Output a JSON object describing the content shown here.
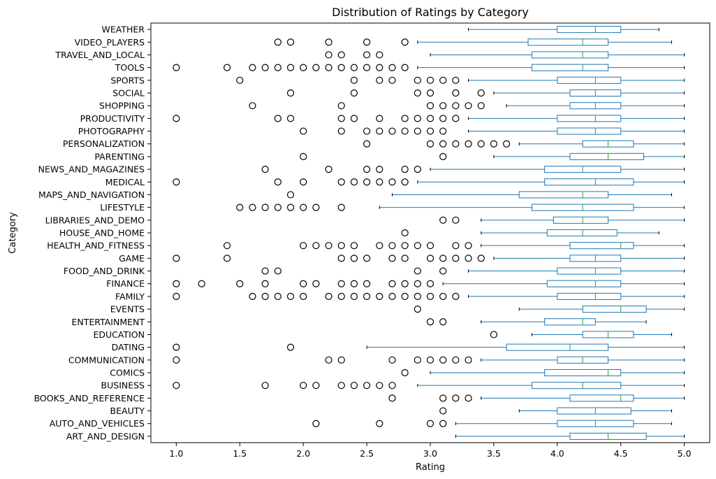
{
  "chart_data": {
    "type": "boxplot",
    "title": "Distribution of Ratings by Category",
    "xlabel": "Rating",
    "ylabel": "Category",
    "xlim": [
      0.8,
      5.2
    ],
    "xticks": [
      "1.0",
      "1.5",
      "2.0",
      "2.5",
      "3.0",
      "3.5",
      "4.0",
      "4.5",
      "5.0"
    ],
    "grid": false,
    "colors": {
      "box": "#1f77b4",
      "median": "#2ca02c",
      "outlier": "#000000"
    },
    "categories": [
      {
        "name": "ART_AND_DESIGN",
        "whislo": 3.2,
        "q1": 4.1,
        "median": 4.4,
        "q3": 4.7,
        "whishi": 5.0,
        "fliers": []
      },
      {
        "name": "AUTO_AND_VEHICLES",
        "whislo": 3.2,
        "q1": 4.0,
        "median": 4.3,
        "q3": 4.6,
        "whishi": 4.9,
        "fliers": [
          2.1,
          2.6,
          3.0,
          3.1
        ]
      },
      {
        "name": "BEAUTY",
        "whislo": 3.7,
        "q1": 4.0,
        "median": 4.3,
        "q3": 4.58,
        "whishi": 4.9,
        "fliers": [
          3.1
        ]
      },
      {
        "name": "BOOKS_AND_REFERENCE",
        "whislo": 3.4,
        "q1": 4.1,
        "median": 4.5,
        "q3": 4.6,
        "whishi": 5.0,
        "fliers": [
          2.7,
          3.1,
          3.2,
          3.3
        ]
      },
      {
        "name": "BUSINESS",
        "whislo": 2.9,
        "q1": 3.8,
        "median": 4.2,
        "q3": 4.5,
        "whishi": 5.0,
        "fliers": [
          1.0,
          1.7,
          2.0,
          2.1,
          2.3,
          2.4,
          2.5,
          2.6,
          2.7
        ]
      },
      {
        "name": "COMICS",
        "whislo": 3.0,
        "q1": 3.9,
        "median": 4.4,
        "q3": 4.5,
        "whishi": 5.0,
        "fliers": [
          2.8
        ]
      },
      {
        "name": "COMMUNICATION",
        "whislo": 3.4,
        "q1": 4.0,
        "median": 4.2,
        "q3": 4.4,
        "whishi": 5.0,
        "fliers": [
          1.0,
          2.2,
          2.3,
          2.7,
          2.9,
          3.0,
          3.1,
          3.2,
          3.3
        ]
      },
      {
        "name": "DATING",
        "whislo": 2.5,
        "q1": 3.6,
        "median": 4.1,
        "q3": 4.4,
        "whishi": 5.0,
        "fliers": [
          1.0,
          1.9
        ]
      },
      {
        "name": "EDUCATION",
        "whislo": 3.8,
        "q1": 4.2,
        "median": 4.4,
        "q3": 4.6,
        "whishi": 4.9,
        "fliers": [
          3.5
        ]
      },
      {
        "name": "ENTERTAINMENT",
        "whislo": 3.4,
        "q1": 3.9,
        "median": 4.2,
        "q3": 4.3,
        "whishi": 4.7,
        "fliers": [
          3.0,
          3.1
        ]
      },
      {
        "name": "EVENTS",
        "whislo": 3.7,
        "q1": 4.2,
        "median": 4.5,
        "q3": 4.7,
        "whishi": 5.0,
        "fliers": [
          2.9
        ]
      },
      {
        "name": "FAMILY",
        "whislo": 3.3,
        "q1": 4.0,
        "median": 4.3,
        "q3": 4.5,
        "whishi": 5.0,
        "fliers": [
          1.0,
          1.6,
          1.7,
          1.8,
          1.9,
          2.0,
          2.2,
          2.3,
          2.4,
          2.5,
          2.6,
          2.7,
          2.8,
          2.9,
          3.0,
          3.1,
          3.2
        ]
      },
      {
        "name": "FINANCE",
        "whislo": 3.1,
        "q1": 3.92,
        "median": 4.3,
        "q3": 4.5,
        "whishi": 5.0,
        "fliers": [
          1.0,
          1.2,
          1.5,
          1.7,
          2.0,
          2.1,
          2.3,
          2.4,
          2.5,
          2.7,
          2.8,
          2.9,
          3.0
        ]
      },
      {
        "name": "FOOD_AND_DRINK",
        "whislo": 3.3,
        "q1": 4.0,
        "median": 4.3,
        "q3": 4.5,
        "whishi": 5.0,
        "fliers": [
          1.7,
          1.8,
          2.9,
          3.1
        ]
      },
      {
        "name": "GAME",
        "whislo": 3.5,
        "q1": 4.1,
        "median": 4.3,
        "q3": 4.5,
        "whishi": 5.0,
        "fliers": [
          1.0,
          1.4,
          2.3,
          2.4,
          2.5,
          2.7,
          2.8,
          3.0,
          3.1,
          3.2,
          3.3,
          3.4
        ]
      },
      {
        "name": "HEALTH_AND_FITNESS",
        "whislo": 3.4,
        "q1": 4.1,
        "median": 4.5,
        "q3": 4.6,
        "whishi": 5.0,
        "fliers": [
          1.4,
          2.0,
          2.1,
          2.2,
          2.3,
          2.4,
          2.6,
          2.7,
          2.8,
          2.9,
          3.0,
          3.2,
          3.3
        ]
      },
      {
        "name": "HOUSE_AND_HOME",
        "whislo": 3.4,
        "q1": 3.92,
        "median": 4.2,
        "q3": 4.47,
        "whishi": 4.8,
        "fliers": [
          2.8
        ]
      },
      {
        "name": "LIBRARIES_AND_DEMO",
        "whislo": 3.4,
        "q1": 3.97,
        "median": 4.2,
        "q3": 4.4,
        "whishi": 5.0,
        "fliers": [
          3.1,
          3.2
        ]
      },
      {
        "name": "LIFESTYLE",
        "whislo": 2.6,
        "q1": 3.8,
        "median": 4.2,
        "q3": 4.6,
        "whishi": 5.0,
        "fliers": [
          1.5,
          1.6,
          1.7,
          1.8,
          1.9,
          2.0,
          2.1,
          2.3
        ]
      },
      {
        "name": "MAPS_AND_NAVIGATION",
        "whislo": 2.7,
        "q1": 3.7,
        "median": 4.2,
        "q3": 4.4,
        "whishi": 4.9,
        "fliers": [
          1.9
        ]
      },
      {
        "name": "MEDICAL",
        "whislo": 2.9,
        "q1": 3.9,
        "median": 4.3,
        "q3": 4.6,
        "whishi": 5.0,
        "fliers": [
          1.0,
          1.8,
          2.0,
          2.3,
          2.4,
          2.5,
          2.6,
          2.7,
          2.8
        ]
      },
      {
        "name": "NEWS_AND_MAGAZINES",
        "whislo": 3.0,
        "q1": 3.9,
        "median": 4.2,
        "q3": 4.5,
        "whishi": 5.0,
        "fliers": [
          1.7,
          2.2,
          2.5,
          2.6,
          2.8,
          2.9
        ]
      },
      {
        "name": "PARENTING",
        "whislo": 3.5,
        "q1": 4.1,
        "median": 4.4,
        "q3": 4.68,
        "whishi": 5.0,
        "fliers": [
          2.0,
          3.1
        ]
      },
      {
        "name": "PERSONALIZATION",
        "whislo": 3.7,
        "q1": 4.2,
        "median": 4.4,
        "q3": 4.6,
        "whishi": 5.0,
        "fliers": [
          2.5,
          3.0,
          3.1,
          3.2,
          3.3,
          3.4,
          3.5,
          3.6
        ]
      },
      {
        "name": "PHOTOGRAPHY",
        "whislo": 3.3,
        "q1": 4.0,
        "median": 4.3,
        "q3": 4.5,
        "whishi": 5.0,
        "fliers": [
          2.0,
          2.3,
          2.5,
          2.6,
          2.7,
          2.8,
          2.9,
          3.0,
          3.1
        ]
      },
      {
        "name": "PRODUCTIVITY",
        "whislo": 3.3,
        "q1": 4.0,
        "median": 4.3,
        "q3": 4.5,
        "whishi": 5.0,
        "fliers": [
          1.0,
          1.8,
          1.9,
          2.3,
          2.4,
          2.6,
          2.8,
          2.9,
          3.0,
          3.1,
          3.2
        ]
      },
      {
        "name": "SHOPPING",
        "whislo": 3.6,
        "q1": 4.1,
        "median": 4.3,
        "q3": 4.5,
        "whishi": 5.0,
        "fliers": [
          1.6,
          2.3,
          3.0,
          3.1,
          3.2,
          3.3,
          3.4
        ]
      },
      {
        "name": "SOCIAL",
        "whislo": 3.5,
        "q1": 4.1,
        "median": 4.3,
        "q3": 4.5,
        "whishi": 5.0,
        "fliers": [
          1.9,
          2.4,
          2.9,
          3.0,
          3.2,
          3.4
        ]
      },
      {
        "name": "SPORTS",
        "whislo": 3.3,
        "q1": 4.0,
        "median": 4.3,
        "q3": 4.5,
        "whishi": 5.0,
        "fliers": [
          1.5,
          2.4,
          2.6,
          2.7,
          2.9,
          3.0,
          3.1,
          3.2
        ]
      },
      {
        "name": "TOOLS",
        "whislo": 2.9,
        "q1": 3.8,
        "median": 4.2,
        "q3": 4.4,
        "whishi": 5.0,
        "fliers": [
          1.0,
          1.4,
          1.6,
          1.7,
          1.8,
          1.9,
          2.0,
          2.1,
          2.2,
          2.3,
          2.4,
          2.5,
          2.6,
          2.7,
          2.8
        ]
      },
      {
        "name": "TRAVEL_AND_LOCAL",
        "whislo": 3.0,
        "q1": 3.8,
        "median": 4.2,
        "q3": 4.4,
        "whishi": 5.0,
        "fliers": [
          2.2,
          2.3,
          2.5,
          2.6
        ]
      },
      {
        "name": "VIDEO_PLAYERS",
        "whislo": 2.9,
        "q1": 3.77,
        "median": 4.2,
        "q3": 4.4,
        "whishi": 4.9,
        "fliers": [
          1.8,
          1.9,
          2.2,
          2.5,
          2.8
        ]
      },
      {
        "name": "WEATHER",
        "whislo": 3.3,
        "q1": 4.0,
        "median": 4.3,
        "q3": 4.5,
        "whishi": 4.8,
        "fliers": []
      }
    ]
  }
}
